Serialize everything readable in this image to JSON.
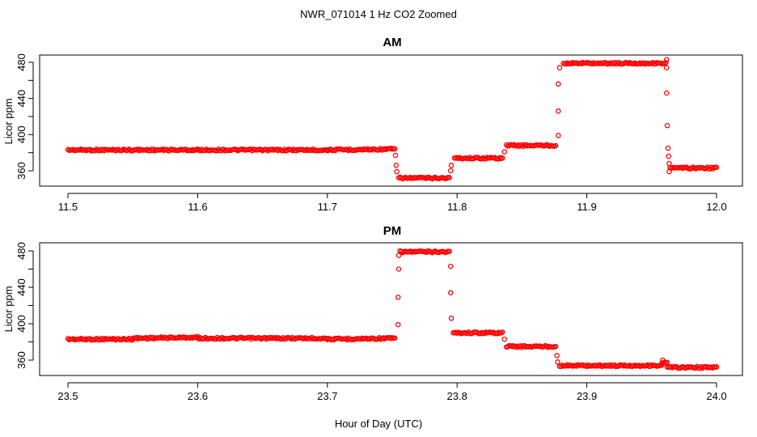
{
  "figure": {
    "title": "NWR_071014  1 Hz CO2 Zoomed",
    "xlabel": "Hour of Day (UTC)"
  },
  "colors": {
    "points": "#ff0000",
    "axes": "#000000",
    "background": "#ffffff"
  },
  "chart_data": [
    {
      "type": "scatter",
      "title": "AM",
      "ylabel": "Licor ppm",
      "xlim": [
        11.5,
        12.0
      ],
      "ylim": [
        345,
        488
      ],
      "xticks": [
        "11.5",
        "11.6",
        "11.7",
        "11.8",
        "11.9",
        "12.0"
      ],
      "yticks": [
        "360",
        "400",
        "440",
        "480"
      ],
      "marker": "open-circle",
      "grid": false,
      "segments": [
        {
          "x": [
            11.5,
            11.6
          ],
          "y": [
            383,
            383
          ]
        },
        {
          "x": [
            11.6,
            11.7
          ],
          "y": [
            383,
            383
          ]
        },
        {
          "x": [
            11.7,
            11.752
          ],
          "y": [
            383,
            384
          ]
        },
        {
          "x": [
            11.755,
            11.794
          ],
          "y": [
            352,
            352
          ]
        },
        {
          "x": [
            11.798,
            11.835
          ],
          "y": [
            374,
            374
          ]
        },
        {
          "x": [
            11.838,
            11.876
          ],
          "y": [
            388,
            388
          ]
        },
        {
          "x": [
            11.882,
            11.961
          ],
          "y": [
            479,
            479
          ]
        },
        {
          "x": [
            11.964,
            12.0
          ],
          "y": [
            363,
            363
          ]
        }
      ],
      "transitions": [
        {
          "x": 11.7525,
          "y": 377
        },
        {
          "x": 11.753,
          "y": 366
        },
        {
          "x": 11.7535,
          "y": 359
        },
        {
          "x": 11.795,
          "y": 360
        },
        {
          "x": 11.7955,
          "y": 366
        },
        {
          "x": 11.8365,
          "y": 381
        },
        {
          "x": 11.878,
          "y": 399
        },
        {
          "x": 11.878,
          "y": 426
        },
        {
          "x": 11.878,
          "y": 456
        },
        {
          "x": 11.879,
          "y": 474
        },
        {
          "x": 11.9615,
          "y": 483
        },
        {
          "x": 11.9615,
          "y": 474
        },
        {
          "x": 11.9615,
          "y": 446
        },
        {
          "x": 11.962,
          "y": 410
        },
        {
          "x": 11.9625,
          "y": 385
        },
        {
          "x": 11.963,
          "y": 376
        },
        {
          "x": 11.9635,
          "y": 368
        },
        {
          "x": 11.9635,
          "y": 359
        }
      ]
    },
    {
      "type": "scatter",
      "title": "PM",
      "ylabel": "Licor ppm",
      "xlim": [
        23.5,
        24.0
      ],
      "ylim": [
        345,
        488
      ],
      "xticks": [
        "23.5",
        "23.6",
        "23.7",
        "23.8",
        "23.9",
        "24.0"
      ],
      "yticks": [
        "360",
        "400",
        "440",
        "480"
      ],
      "marker": "open-circle",
      "grid": false,
      "segments": [
        {
          "x": [
            23.5,
            23.55
          ],
          "y": [
            383,
            383
          ]
        },
        {
          "x": [
            23.55,
            23.6
          ],
          "y": [
            384,
            385
          ]
        },
        {
          "x": [
            23.6,
            23.7
          ],
          "y": [
            384,
            384
          ]
        },
        {
          "x": [
            23.7,
            23.752
          ],
          "y": [
            383,
            384
          ]
        },
        {
          "x": [
            23.756,
            23.794
          ],
          "y": [
            479,
            479
          ]
        },
        {
          "x": [
            23.797,
            23.835
          ],
          "y": [
            390,
            390
          ]
        },
        {
          "x": [
            23.838,
            23.876
          ],
          "y": [
            375,
            375
          ]
        },
        {
          "x": [
            23.879,
            23.958
          ],
          "y": [
            354,
            354
          ]
        },
        {
          "x": [
            23.958,
            23.962
          ],
          "y": [
            357,
            357
          ]
        },
        {
          "x": [
            23.962,
            24.0
          ],
          "y": [
            352,
            352
          ]
        }
      ],
      "transitions": [
        {
          "x": 23.7545,
          "y": 399
        },
        {
          "x": 23.7545,
          "y": 429
        },
        {
          "x": 23.755,
          "y": 460
        },
        {
          "x": 23.755,
          "y": 475
        },
        {
          "x": 23.795,
          "y": 463
        },
        {
          "x": 23.795,
          "y": 434
        },
        {
          "x": 23.7955,
          "y": 406
        },
        {
          "x": 23.8365,
          "y": 383
        },
        {
          "x": 23.877,
          "y": 365
        },
        {
          "x": 23.8775,
          "y": 358
        },
        {
          "x": 23.9585,
          "y": 360
        }
      ]
    }
  ]
}
